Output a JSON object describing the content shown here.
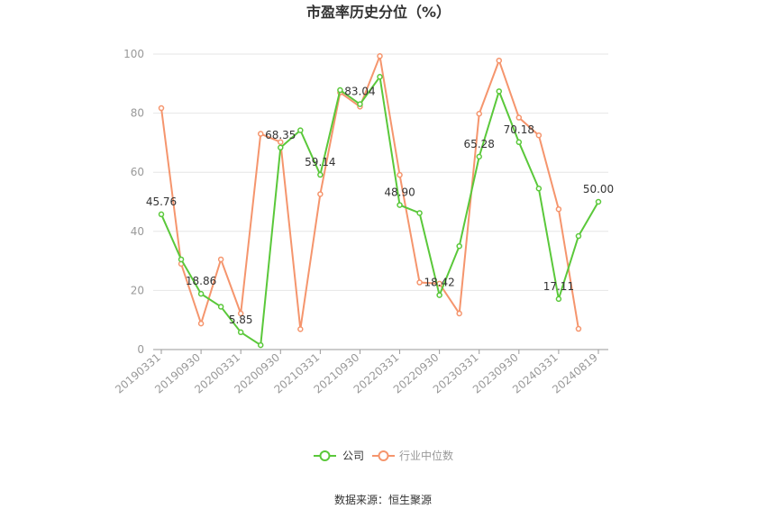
{
  "chart_data": {
    "type": "line",
    "title": "市盈率历史分位（%）",
    "source": "数据来源：恒生聚源",
    "ylim": [
      0,
      100
    ],
    "yticks": [
      0,
      20,
      40,
      60,
      80,
      100
    ],
    "x_tick_labels": [
      "20190331",
      "20190930",
      "20200331",
      "20200930",
      "20210331",
      "20210930",
      "20220331",
      "20220930",
      "20230331",
      "20230930",
      "20240331",
      "20240819"
    ],
    "x_tick_positions": [
      0,
      2,
      4,
      6,
      8,
      10,
      12,
      14,
      16,
      18,
      20,
      22
    ],
    "n_points": 23,
    "grid": true,
    "legend_position": "bottom",
    "series": [
      {
        "name": "公司",
        "color": "#5ac83a",
        "values": [
          45.76,
          30.5,
          18.86,
          14.5,
          5.85,
          1.5,
          68.35,
          74.2,
          59.14,
          87.8,
          83.04,
          92.3,
          48.9,
          46.2,
          18.42,
          35.0,
          65.28,
          87.4,
          70.18,
          54.5,
          17.11,
          38.4,
          50.0
        ],
        "labels": {
          "0": "45.76",
          "2": "18.86",
          "4": "5.85",
          "6": "68.35",
          "8": "59.14",
          "10": "83.04",
          "12": "48.90",
          "14": "18.42",
          "16": "65.28",
          "18": "70.18",
          "20": "17.11",
          "22": "50.00"
        }
      },
      {
        "name": "行业中位数",
        "color": "#f5956d",
        "values": [
          81.7,
          29.0,
          8.8,
          30.5,
          12.2,
          73.0,
          70.2,
          6.9,
          52.6,
          87.0,
          82.2,
          99.3,
          59.1,
          22.7,
          22.3,
          12.2,
          79.8,
          97.8,
          78.5,
          72.5,
          47.5,
          7.0,
          null
        ]
      }
    ]
  }
}
